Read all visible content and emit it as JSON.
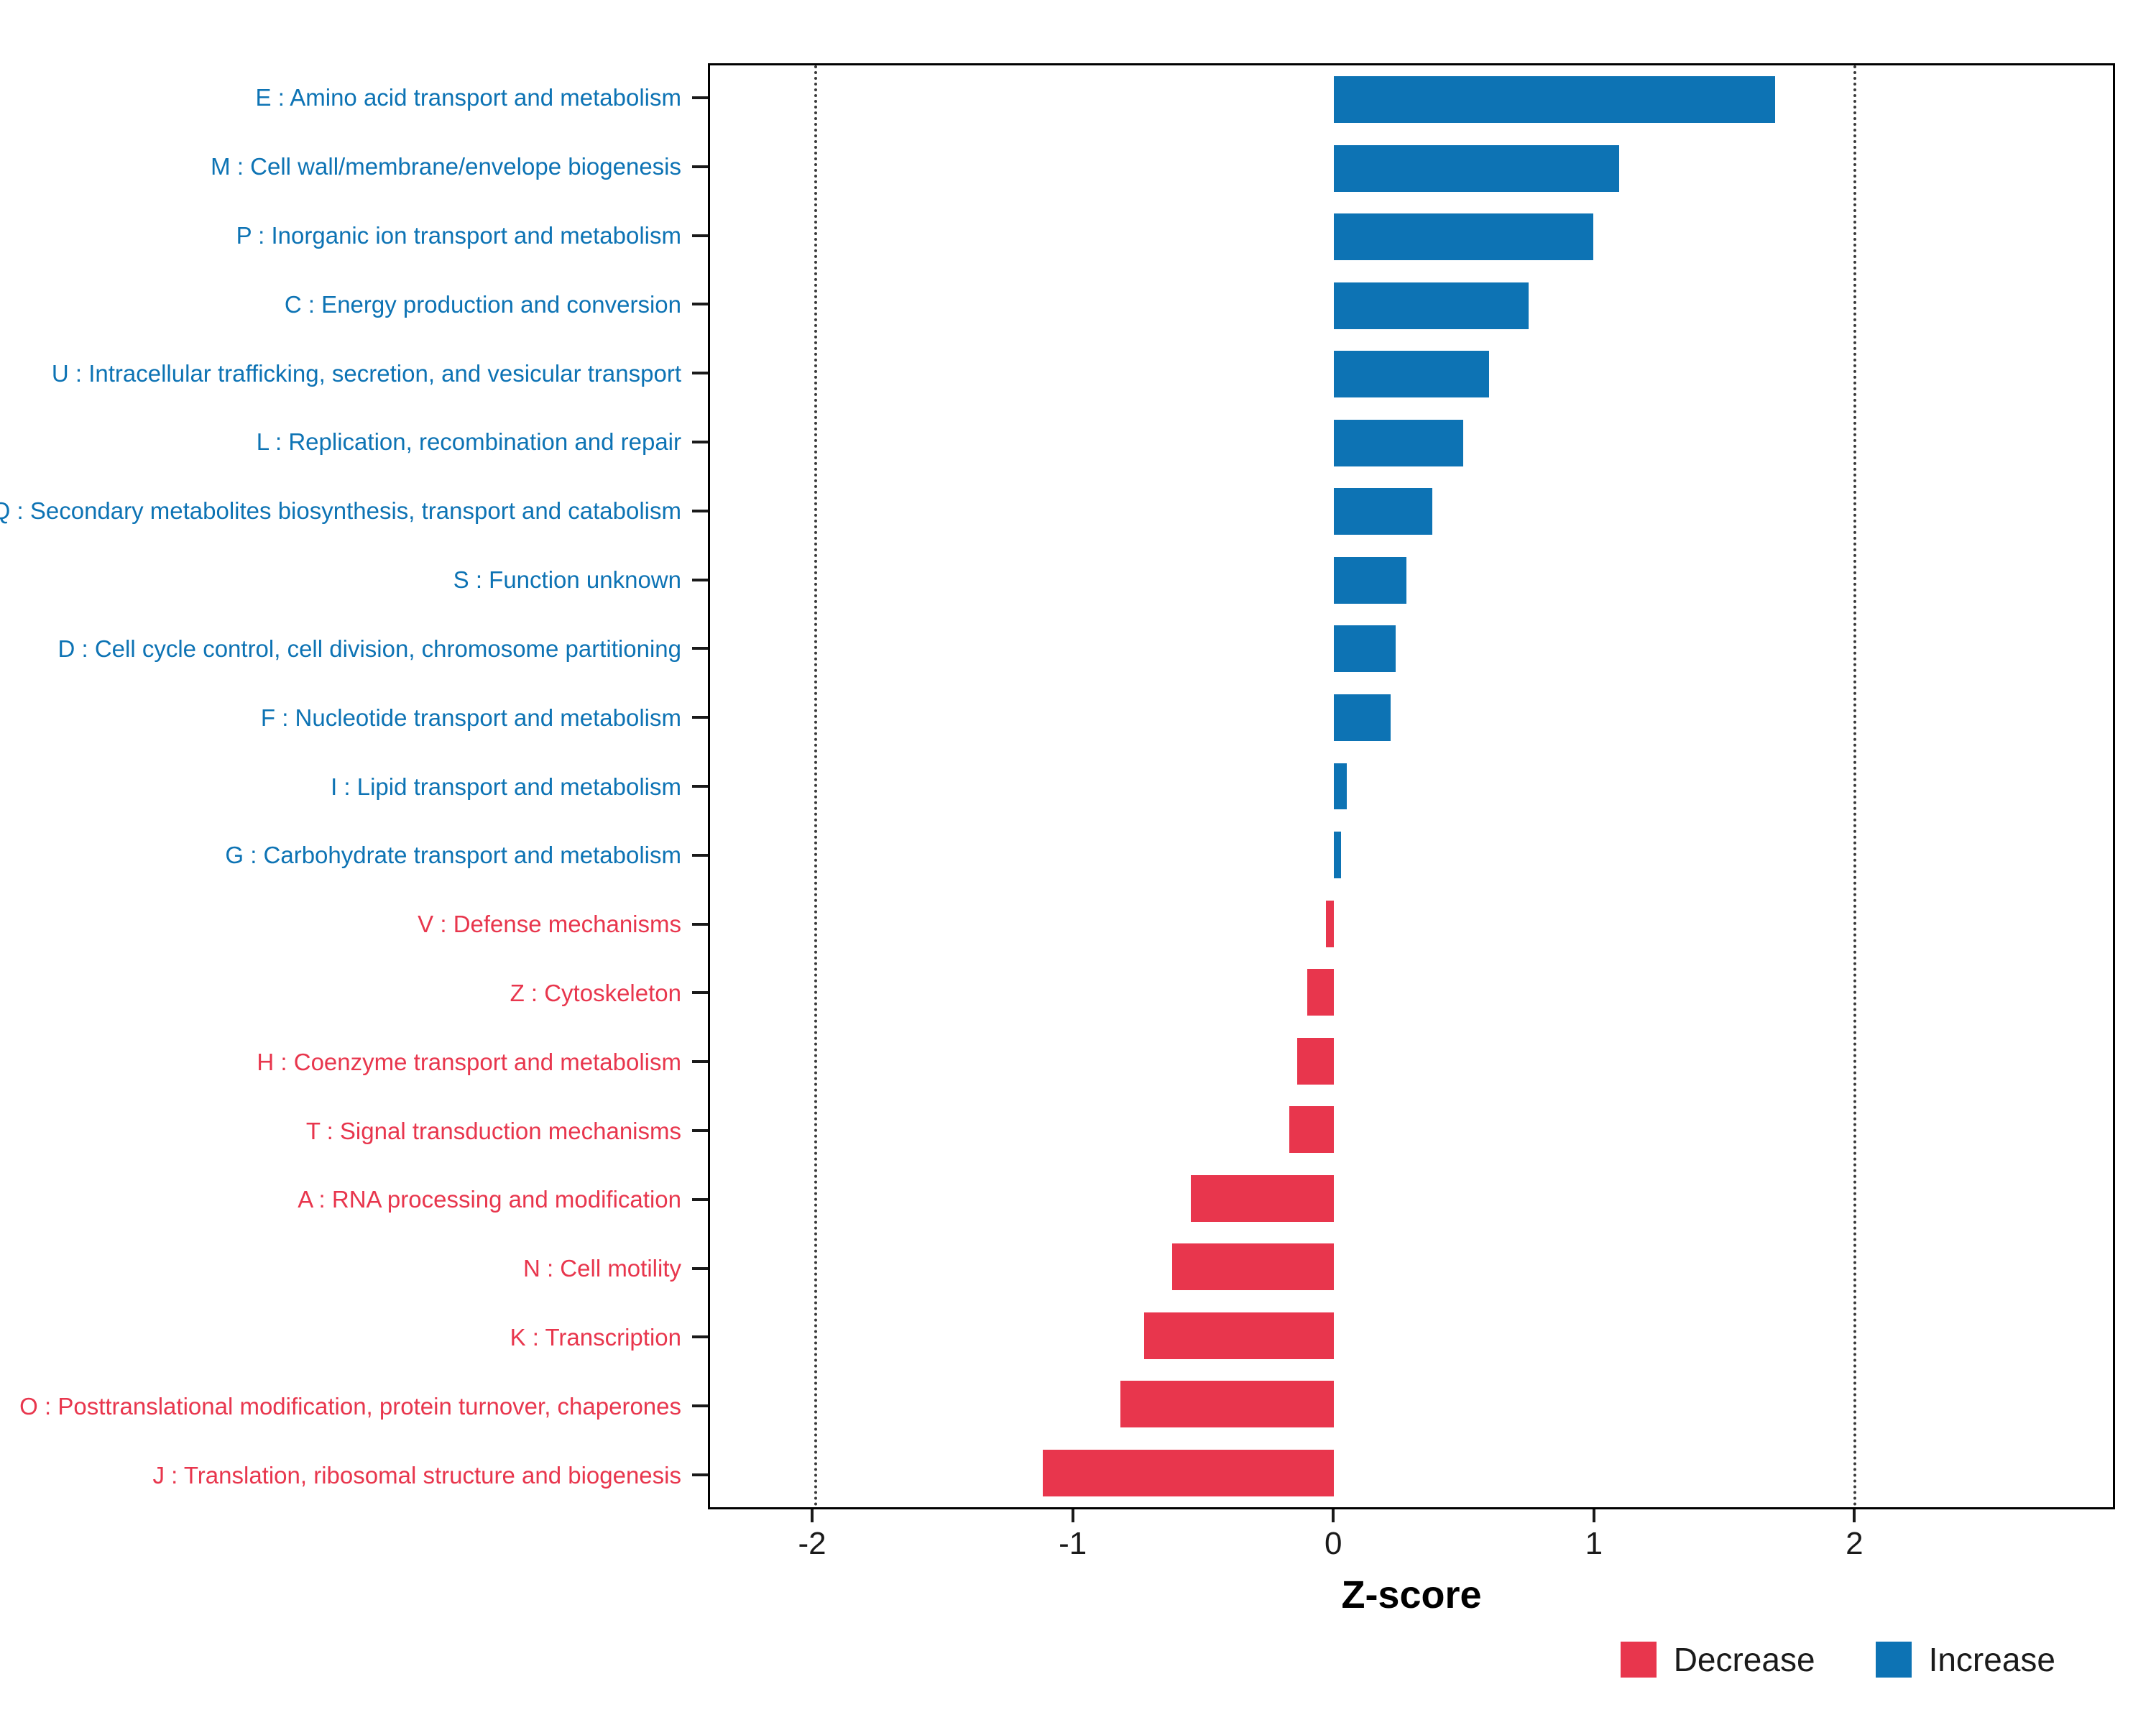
{
  "chart_data": {
    "type": "bar",
    "orientation": "horizontal",
    "title": "",
    "xlabel": "Z-score",
    "ylabel": "",
    "x_domain": [
      -2.4,
      3.0
    ],
    "x_ticks": [
      -2,
      -1,
      0,
      1,
      2
    ],
    "gridlines_dotted_at": [
      -2,
      2
    ],
    "grid": "dotted reference lines at -2 and 2 only",
    "legend_position": "bottom-right",
    "categories": [
      "E : Amino acid transport and metabolism",
      "M : Cell wall/membrane/envelope biogenesis",
      "P : Inorganic ion transport and metabolism",
      "C : Energy production and conversion",
      "U : Intracellular trafficking, secretion, and vesicular transport",
      "L : Replication, recombination and repair",
      "Q : Secondary metabolites biosynthesis, transport and catabolism",
      "S : Function unknown",
      "D : Cell cycle control, cell division, chromosome partitioning",
      "F : Nucleotide transport and metabolism",
      "I : Lipid transport and metabolism",
      "G : Carbohydrate transport and metabolism",
      "V : Defense mechanisms",
      "Z : Cytoskeleton",
      "H : Coenzyme transport and metabolism",
      "T : Signal transduction mechanisms",
      "A : RNA processing and modification",
      "N : Cell motility",
      "K : Transcription",
      "O : Posttranslational modification, protein turnover, chaperones",
      "J : Translation, ribosomal structure and biogenesis"
    ],
    "values": [
      1.7,
      1.1,
      1.0,
      0.75,
      0.6,
      0.5,
      0.38,
      0.28,
      0.24,
      0.22,
      0.05,
      0.03,
      -0.03,
      -0.1,
      -0.14,
      -0.17,
      -0.55,
      -0.62,
      -0.73,
      -0.82,
      -1.12
    ],
    "directions": [
      "Increase",
      "Increase",
      "Increase",
      "Increase",
      "Increase",
      "Increase",
      "Increase",
      "Increase",
      "Increase",
      "Increase",
      "Increase",
      "Increase",
      "Decrease",
      "Decrease",
      "Decrease",
      "Decrease",
      "Decrease",
      "Decrease",
      "Decrease",
      "Decrease",
      "Decrease"
    ],
    "colors": {
      "Increase": "#0D73B4",
      "Decrease": "#E8364D"
    },
    "legend": [
      {
        "label": "Decrease",
        "color": "#E8364D"
      },
      {
        "label": "Increase",
        "color": "#0D73B4"
      }
    ]
  }
}
